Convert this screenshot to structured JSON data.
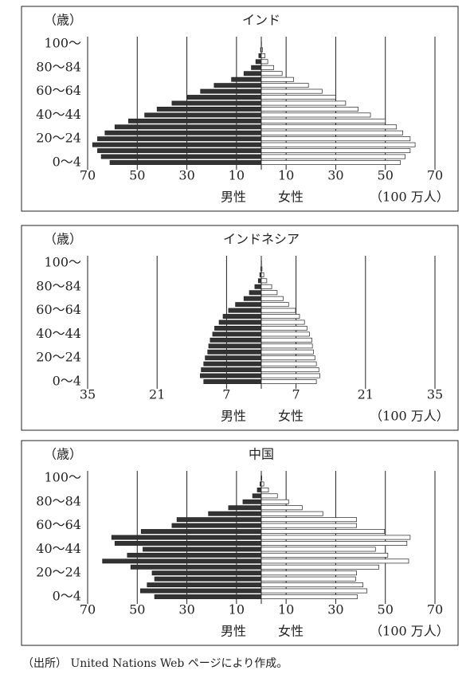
{
  "chart_data": [
    {
      "type": "pyramid",
      "title": "インド",
      "y_label": "（歳）",
      "unit": "（100 万人）",
      "categories": [
        "0～4",
        null,
        null,
        null,
        "20～24",
        null,
        null,
        null,
        "40～44",
        null,
        null,
        null,
        "60～64",
        null,
        null,
        null,
        "80～84",
        null,
        null,
        null,
        "100～"
      ],
      "series": [
        {
          "name": "男性",
          "color": "#333333",
          "values": [
            61,
            64.5,
            66,
            68,
            66,
            63,
            59,
            53.5,
            47,
            42,
            36,
            30,
            24.5,
            19,
            12,
            7,
            4,
            2.2,
            1,
            0.3,
            0.05
          ]
        },
        {
          "name": "女性",
          "color": "#ffffff",
          "values": [
            56,
            58,
            60,
            62,
            60,
            57,
            54.5,
            50,
            44,
            39,
            34,
            30,
            24.5,
            19,
            13,
            8.4,
            5,
            2.6,
            1.5,
            0.5,
            0.1
          ]
        }
      ],
      "xlim": [
        -70,
        70
      ],
      "xticks": [
        {
          "value": -70,
          "label": "70"
        },
        {
          "value": -50,
          "label": "50"
        },
        {
          "value": -30,
          "label": "30"
        },
        {
          "value": -10,
          "label": "10"
        },
        10,
        30,
        50,
        70
      ]
    },
    {
      "type": "pyramid",
      "title": "インドネシア",
      "y_label": "（歳）",
      "unit": "（100 万人）",
      "categories": [
        "0～4",
        null,
        null,
        null,
        "20～24",
        null,
        null,
        null,
        "40～44",
        null,
        null,
        null,
        "60～64",
        null,
        null,
        null,
        "80～84",
        null,
        null,
        null,
        "100～"
      ],
      "series": [
        {
          "name": "男性",
          "color": "#333333",
          "values": [
            11.6,
            12.3,
            12.1,
            11.6,
            11.3,
            10.8,
            10.6,
            10.3,
            9.8,
            9.4,
            8.5,
            7.7,
            6.6,
            5.2,
            3.5,
            2.4,
            1.3,
            0.6,
            0.3,
            0.1,
            0.02
          ]
        },
        {
          "name": "女性",
          "color": "#ffffff",
          "values": [
            11.1,
            11.8,
            11.6,
            11.1,
            10.8,
            10.5,
            10.3,
            10.2,
            9.7,
            9.2,
            8.7,
            7.7,
            6.9,
            5.5,
            4.4,
            3.2,
            2.1,
            1.1,
            0.5,
            0.15,
            0.03
          ]
        }
      ],
      "xlim": [
        -35,
        35
      ],
      "xticks": [
        {
          "value": -35,
          "label": "35"
        },
        {
          "value": -21,
          "label": "21"
        },
        {
          "value": -7,
          "label": "7"
        },
        7,
        21,
        35
      ]
    },
    {
      "type": "pyramid",
      "title": "中国",
      "y_label": "（歳）",
      "unit": "（100 万人）",
      "categories": [
        "0～4",
        null,
        null,
        null,
        "20～24",
        null,
        null,
        null,
        "40～44",
        null,
        null,
        null,
        "60～64",
        null,
        null,
        null,
        "80～84",
        null,
        null,
        null,
        "100～"
      ],
      "series": [
        {
          "name": "男性",
          "color": "#333333",
          "values": [
            43,
            48.7,
            46,
            43,
            44,
            52.6,
            64,
            54,
            47.7,
            59,
            60.3,
            48.4,
            36,
            34,
            21.3,
            13.2,
            7.4,
            3.5,
            1.6,
            0.5,
            0.1
          ]
        },
        {
          "name": "女性",
          "color": "#ffffff",
          "values": [
            38.7,
            42.6,
            41,
            38,
            38.4,
            47.4,
            59.4,
            51,
            46,
            58.7,
            60,
            49.7,
            38.4,
            38.4,
            24.8,
            16.5,
            11,
            6.5,
            2.9,
            1,
            0.2
          ]
        }
      ],
      "xlim": [
        -70,
        70
      ],
      "xticks": [
        {
          "value": -70,
          "label": "70"
        },
        {
          "value": -50,
          "label": "50"
        },
        {
          "value": -30,
          "label": "30"
        },
        {
          "value": -10,
          "label": "10"
        },
        10,
        30,
        50,
        70
      ]
    }
  ],
  "source": "（出所） United Nations Web ページにより作成。"
}
